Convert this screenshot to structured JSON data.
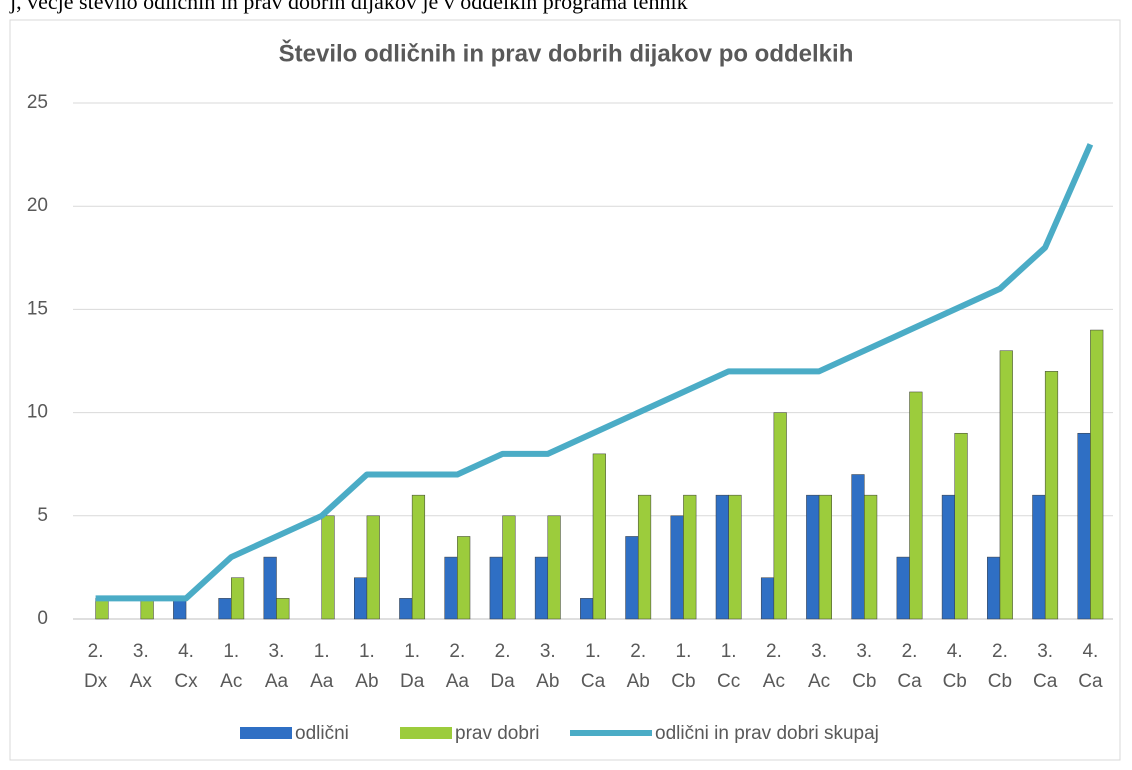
{
  "header_text": "j, večje število odličnih in prav dobrih dijakov je v oddelkih programa tehnik",
  "chart_data": {
    "type": "bar-line",
    "title": "Število odličnih in prav dobrih dijakov po oddelkih",
    "categories": [
      [
        "2.",
        "Dx"
      ],
      [
        "3.",
        "Ax"
      ],
      [
        "4.",
        "Cx"
      ],
      [
        "1.",
        "Ac"
      ],
      [
        "3.",
        "Aa"
      ],
      [
        "1.",
        "Aa"
      ],
      [
        "1.",
        "Ab"
      ],
      [
        "1.",
        "Da"
      ],
      [
        "2.",
        "Aa"
      ],
      [
        "2.",
        "Da"
      ],
      [
        "3.",
        "Ab"
      ],
      [
        "1.",
        "Ca"
      ],
      [
        "2.",
        "Ab"
      ],
      [
        "1.",
        "Cb"
      ],
      [
        "1.",
        "Cc"
      ],
      [
        "2.",
        "Ac"
      ],
      [
        "3.",
        "Ac"
      ],
      [
        "3.",
        "Cb"
      ],
      [
        "2.",
        "Ca"
      ],
      [
        "4.",
        "Cb"
      ],
      [
        "2.",
        "Cb"
      ],
      [
        "3.",
        "Ca"
      ],
      [
        "4.",
        "Ca"
      ]
    ],
    "series": [
      {
        "name": "odlični",
        "kind": "bar",
        "color": "#2f6fc4",
        "values": [
          0,
          0,
          1,
          1,
          3,
          0,
          2,
          1,
          3,
          3,
          3,
          1,
          4,
          5,
          6,
          2,
          6,
          7,
          3,
          6,
          3,
          6,
          9
        ]
      },
      {
        "name": "prav dobri",
        "kind": "bar",
        "color": "#9ccc3c",
        "values": [
          1,
          1,
          0,
          2,
          1,
          5,
          5,
          6,
          4,
          5,
          5,
          8,
          6,
          6,
          6,
          10,
          6,
          6,
          11,
          9,
          13,
          12,
          14
        ]
      },
      {
        "name": "odlični in prav dobri skupaj",
        "kind": "line",
        "color": "#4bacc6",
        "values": [
          1,
          1,
          1,
          3,
          4,
          5,
          7,
          7,
          7,
          8,
          8,
          9,
          10,
          11,
          12,
          12,
          12,
          13,
          14,
          15,
          16,
          18,
          23
        ]
      }
    ],
    "ylim": [
      0,
      25
    ],
    "yticks": [
      0,
      5,
      10,
      15,
      20,
      25
    ],
    "grid": true,
    "legend": "bottom"
  }
}
